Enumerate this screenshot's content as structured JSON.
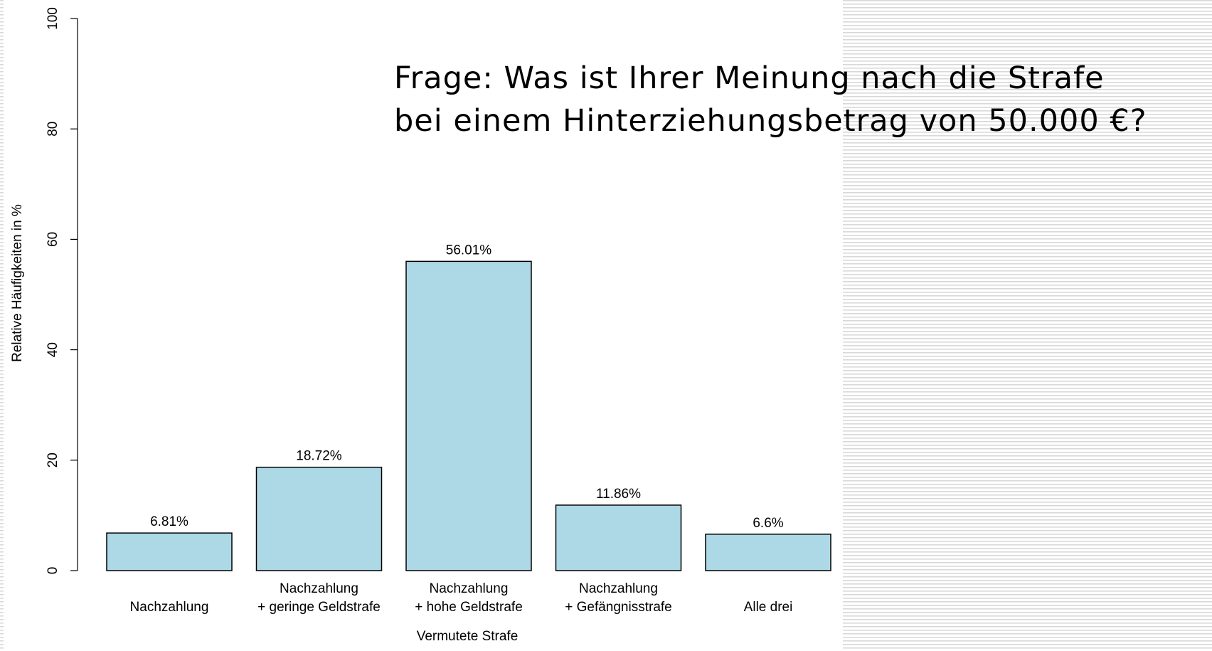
{
  "chart_data": {
    "type": "bar",
    "annotation": [
      "Frage: Was ist Ihrer Meinung nach die Strafe",
      "bei einem Hinterziehungsbetrag von 50.000 €?"
    ],
    "xlabel": "Vermutete Strafe",
    "ylabel": "Relative Häufigkeiten in %",
    "categories": [
      "Nachzahlung",
      "Nachzahlung\n+ geringe Geldstrafe",
      "Nachzahlung\n+ hohe Geldstrafe",
      "Nachzahlung\n+ Gefängnisstrafe",
      "Alle drei"
    ],
    "values": [
      6.81,
      18.72,
      56.01,
      11.86,
      6.6
    ],
    "value_labels": [
      "6.81%",
      "18.72%",
      "56.01%",
      "11.86%",
      "6.6%"
    ],
    "color": "#add8e6",
    "ylim": [
      0,
      100
    ],
    "yticks": [
      0,
      20,
      40,
      60,
      80,
      100
    ]
  }
}
